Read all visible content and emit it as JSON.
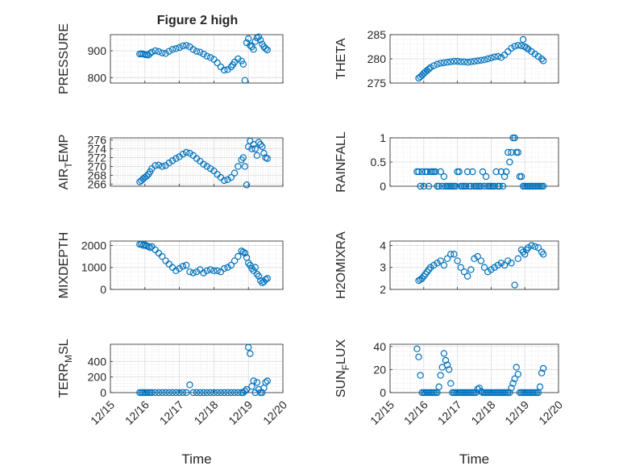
{
  "figure_title": "Figure 2 high",
  "marker_color": "#0072BD",
  "x_tick_labels": [
    "12/15",
    "12/16",
    "12/17",
    "12/18",
    "12/19",
    "12/20"
  ],
  "chart_data": [
    {
      "type": "scatter",
      "ylabel": "PRESSURE",
      "title": "Figure 2 high",
      "ylim": [
        780,
        960
      ],
      "yticks": [
        800,
        900
      ],
      "xlim": [
        15,
        20
      ],
      "grid": true,
      "x": [
        15.85,
        15.9,
        15.95,
        16.0,
        16.05,
        16.1,
        16.15,
        16.2,
        16.3,
        16.4,
        16.5,
        16.6,
        16.7,
        16.8,
        16.9,
        17.0,
        17.1,
        17.2,
        17.3,
        17.4,
        17.5,
        17.6,
        17.7,
        17.8,
        17.9,
        18.0,
        18.1,
        18.2,
        18.3,
        18.4,
        18.5,
        18.55,
        18.6,
        18.7,
        18.8,
        18.85,
        18.9,
        18.95,
        19.0,
        19.05,
        19.1,
        19.15,
        19.2,
        19.25,
        19.3,
        19.35,
        19.4,
        19.45,
        19.5,
        19.55
      ],
      "y": [
        888,
        889,
        888,
        886,
        885,
        884,
        890,
        895,
        900,
        897,
        892,
        890,
        898,
        905,
        908,
        912,
        918,
        920,
        915,
        905,
        898,
        895,
        888,
        880,
        875,
        868,
        855,
        840,
        828,
        830,
        840,
        848,
        858,
        870,
        862,
        850,
        790,
        930,
        945,
        920,
        915,
        905,
        935,
        948,
        952,
        940,
        925,
        915,
        908,
        903
      ]
    },
    {
      "type": "scatter",
      "ylabel": "THETA",
      "ylim": [
        275,
        285
      ],
      "yticks": [
        275,
        280,
        285
      ],
      "xlim": [
        15,
        20
      ],
      "grid": true,
      "x": [
        15.85,
        15.9,
        15.95,
        16.0,
        16.05,
        16.1,
        16.15,
        16.2,
        16.3,
        16.4,
        16.5,
        16.6,
        16.7,
        16.8,
        16.9,
        17.0,
        17.1,
        17.2,
        17.3,
        17.4,
        17.5,
        17.6,
        17.7,
        17.8,
        17.9,
        18.0,
        18.1,
        18.2,
        18.3,
        18.4,
        18.5,
        18.6,
        18.7,
        18.8,
        18.9,
        18.95,
        19.0,
        19.05,
        19.1,
        19.2,
        19.3,
        19.4,
        19.5,
        19.55
      ],
      "y": [
        276,
        276.3,
        276.6,
        277,
        277.3,
        277.6,
        277.9,
        278.2,
        278.6,
        278.9,
        279.1,
        279.2,
        279.3,
        279.4,
        279.5,
        279.5,
        279.4,
        279.4,
        279.3,
        279.4,
        279.5,
        279.6,
        279.7,
        279.8,
        280,
        280.2,
        280.4,
        280.5,
        280.3,
        280.8,
        281.5,
        282.2,
        282.6,
        282.8,
        282.7,
        284,
        282.5,
        282.3,
        282,
        281.5,
        281,
        280.5,
        280,
        279.6
      ]
    },
    {
      "type": "scatter",
      "ylabel": "AIR_TEMP",
      "ylim": [
        265.5,
        276.5
      ],
      "yticks": [
        266,
        268,
        270,
        272,
        274,
        276
      ],
      "xlim": [
        15,
        20
      ],
      "grid": true,
      "x": [
        15.85,
        15.9,
        15.95,
        16.0,
        16.05,
        16.1,
        16.15,
        16.2,
        16.3,
        16.4,
        16.5,
        16.6,
        16.7,
        16.8,
        16.9,
        17.0,
        17.1,
        17.2,
        17.3,
        17.4,
        17.5,
        17.6,
        17.7,
        17.8,
        17.9,
        18.0,
        18.1,
        18.2,
        18.3,
        18.4,
        18.5,
        18.6,
        18.7,
        18.8,
        18.85,
        18.9,
        18.95,
        19.0,
        19.05,
        19.1,
        19.15,
        19.2,
        19.25,
        19.3,
        19.35,
        19.4,
        19.45,
        19.5,
        19.55
      ],
      "y": [
        266.5,
        266.8,
        267.2,
        267.5,
        267.8,
        268.2,
        268.8,
        269.5,
        270.2,
        270.3,
        270,
        270.2,
        270.8,
        271.3,
        271.8,
        272.2,
        272.8,
        273.2,
        273,
        272.5,
        271.8,
        271.2,
        270.5,
        270,
        269.5,
        269,
        268.2,
        267.5,
        266.8,
        267,
        267.5,
        268.5,
        270,
        271.5,
        272,
        270,
        265.8,
        274.5,
        275.8,
        274,
        275,
        274,
        272.5,
        275.5,
        275,
        274.5,
        273,
        272,
        271.8
      ]
    },
    {
      "type": "scatter",
      "ylabel": "RAINFALL",
      "ylim": [
        0,
        1
      ],
      "yticks": [
        0,
        0.5,
        1
      ],
      "xlim": [
        15,
        20
      ],
      "grid": true,
      "x": [
        15.8,
        15.85,
        15.9,
        15.95,
        16.0,
        16.05,
        16.1,
        16.15,
        16.2,
        16.25,
        16.3,
        16.35,
        16.4,
        16.45,
        16.5,
        16.55,
        16.6,
        16.65,
        16.7,
        16.75,
        16.8,
        16.85,
        16.9,
        16.95,
        17.0,
        17.05,
        17.1,
        17.15,
        17.2,
        17.25,
        17.3,
        17.35,
        17.4,
        17.45,
        17.5,
        17.55,
        17.6,
        17.65,
        17.7,
        17.75,
        17.8,
        17.85,
        17.9,
        17.95,
        18.0,
        18.05,
        18.1,
        18.15,
        18.2,
        18.25,
        18.3,
        18.35,
        18.4,
        18.45,
        18.5,
        18.55,
        18.6,
        18.65,
        18.7,
        18.75,
        18.8,
        18.85,
        18.9,
        18.95,
        19.0,
        19.05,
        19.1,
        19.15,
        19.2,
        19.25,
        19.3,
        19.35,
        19.4,
        19.45,
        19.5,
        19.55
      ],
      "y": [
        0.3,
        0.3,
        0,
        0.3,
        0,
        0.3,
        0.3,
        0,
        0.3,
        0.3,
        0.3,
        0.3,
        0,
        0,
        0.3,
        0,
        0.2,
        0,
        0,
        0,
        0,
        0,
        0,
        0,
        0.3,
        0.3,
        0,
        0,
        0,
        0,
        0.3,
        0,
        0,
        0.3,
        0,
        0,
        0,
        0,
        0,
        0.3,
        0,
        0.2,
        0,
        0,
        0,
        0,
        0,
        0.3,
        0,
        0,
        0.3,
        0,
        0.2,
        0.3,
        0.7,
        0.5,
        0.7,
        1,
        1,
        0.7,
        0.7,
        0.2,
        0.2,
        0,
        0,
        0,
        0,
        0,
        0,
        0,
        0,
        0,
        0,
        0,
        0,
        0
      ]
    },
    {
      "type": "scatter",
      "ylabel": "MIXDEPTH",
      "ylim": [
        0,
        2200
      ],
      "yticks": [
        0,
        1000,
        2000
      ],
      "xlim": [
        15,
        20
      ],
      "grid": true,
      "x": [
        15.85,
        15.9,
        15.95,
        16.0,
        16.05,
        16.1,
        16.15,
        16.2,
        16.3,
        16.4,
        16.5,
        16.6,
        16.7,
        16.8,
        16.9,
        17.0,
        17.1,
        17.2,
        17.3,
        17.4,
        17.5,
        17.6,
        17.7,
        17.8,
        17.9,
        18.0,
        18.1,
        18.2,
        18.3,
        18.4,
        18.5,
        18.6,
        18.7,
        18.8,
        18.85,
        18.9,
        18.95,
        19.0,
        19.05,
        19.1,
        19.15,
        19.2,
        19.25,
        19.3,
        19.35,
        19.4,
        19.45,
        19.5,
        19.55
      ],
      "y": [
        2050,
        2050,
        2000,
        2030,
        1980,
        1950,
        1900,
        1950,
        1800,
        1650,
        1500,
        1300,
        1150,
        1000,
        850,
        950,
        1050,
        1100,
        800,
        750,
        800,
        900,
        750,
        850,
        900,
        850,
        850,
        800,
        950,
        1000,
        1100,
        1300,
        1500,
        1750,
        1700,
        1650,
        1450,
        1200,
        1100,
        950,
        850,
        1000,
        700,
        600,
        400,
        300,
        350,
        450,
        500
      ]
    },
    {
      "type": "scatter",
      "ylabel": "H2OMIXRA",
      "ylim": [
        2,
        4.2
      ],
      "yticks": [
        2,
        3,
        4
      ],
      "xlim": [
        15,
        20
      ],
      "grid": true,
      "x": [
        15.85,
        15.9,
        15.95,
        16.0,
        16.05,
        16.1,
        16.15,
        16.2,
        16.3,
        16.4,
        16.5,
        16.6,
        16.7,
        16.8,
        16.9,
        17.0,
        17.1,
        17.2,
        17.3,
        17.4,
        17.5,
        17.6,
        17.7,
        17.8,
        17.9,
        18.0,
        18.1,
        18.2,
        18.3,
        18.4,
        18.5,
        18.6,
        18.7,
        18.8,
        18.9,
        18.95,
        19.0,
        19.05,
        19.1,
        19.2,
        19.3,
        19.4,
        19.5,
        19.55
      ],
      "y": [
        2.4,
        2.45,
        2.5,
        2.6,
        2.7,
        2.8,
        2.9,
        3.0,
        3.1,
        3.2,
        3.3,
        3.1,
        3.4,
        3.6,
        3.6,
        3.3,
        3.0,
        2.8,
        2.6,
        2.9,
        3.4,
        3.5,
        3.3,
        3.0,
        2.8,
        2.9,
        3.0,
        3.1,
        3.2,
        3.1,
        3.3,
        3.2,
        2.2,
        3.4,
        3.8,
        3.7,
        3.6,
        3.8,
        3.9,
        4.0,
        3.95,
        3.9,
        3.7,
        3.6
      ]
    },
    {
      "type": "scatter",
      "ylabel": "TERR_MSL",
      "ylim": [
        0,
        620
      ],
      "yticks": [
        0,
        200,
        400
      ],
      "xlim": [
        15,
        20
      ],
      "grid": true,
      "x": [
        15.85,
        15.9,
        15.95,
        16.0,
        16.05,
        16.1,
        16.15,
        16.2,
        16.3,
        16.4,
        16.5,
        16.6,
        16.7,
        16.8,
        16.9,
        17.0,
        17.1,
        17.2,
        17.3,
        17.4,
        17.5,
        17.6,
        17.7,
        17.8,
        17.9,
        18.0,
        18.1,
        18.2,
        18.3,
        18.4,
        18.5,
        18.6,
        18.7,
        18.8,
        18.85,
        18.9,
        18.95,
        19.0,
        19.05,
        19.1,
        19.15,
        19.2,
        19.25,
        19.3,
        19.35,
        19.4,
        19.45,
        19.5,
        19.55
      ],
      "y": [
        0,
        0,
        0,
        0,
        0,
        0,
        0,
        0,
        0,
        0,
        0,
        0,
        0,
        0,
        0,
        0,
        0,
        0,
        100,
        0,
        0,
        0,
        0,
        0,
        0,
        0,
        0,
        0,
        0,
        0,
        0,
        0,
        0,
        0,
        0,
        20,
        40,
        580,
        500,
        80,
        150,
        0,
        130,
        40,
        0,
        0,
        60,
        130,
        150
      ]
    },
    {
      "type": "scatter",
      "ylabel": "SUN_FLUX",
      "ylim": [
        0,
        42
      ],
      "yticks": [
        0,
        20,
        40
      ],
      "xlim": [
        15,
        20
      ],
      "grid": true,
      "x": [
        15.8,
        15.85,
        15.9,
        15.95,
        16.0,
        16.05,
        16.1,
        16.15,
        16.2,
        16.25,
        16.3,
        16.35,
        16.4,
        16.45,
        16.5,
        16.55,
        16.6,
        16.65,
        16.7,
        16.75,
        16.8,
        16.85,
        16.9,
        16.95,
        17.0,
        17.05,
        17.1,
        17.15,
        17.2,
        17.25,
        17.3,
        17.35,
        17.4,
        17.45,
        17.5,
        17.55,
        17.6,
        17.65,
        17.7,
        17.75,
        17.8,
        17.85,
        17.9,
        17.95,
        18.0,
        18.05,
        18.1,
        18.15,
        18.2,
        18.25,
        18.3,
        18.35,
        18.4,
        18.45,
        18.5,
        18.55,
        18.6,
        18.65,
        18.7,
        18.75,
        18.8,
        18.85,
        18.9,
        18.95,
        19.0,
        19.05,
        19.1,
        19.15,
        19.2,
        19.25,
        19.3,
        19.35,
        19.4,
        19.45,
        19.5,
        19.55
      ],
      "y": [
        38,
        31,
        15,
        0,
        0,
        0,
        0,
        0,
        0,
        0,
        0,
        0,
        0,
        5,
        15,
        22,
        34,
        28,
        24,
        20,
        8,
        0,
        0,
        0,
        0,
        0,
        0,
        0,
        0,
        0,
        0,
        0,
        0,
        0,
        0,
        0,
        3,
        4,
        1,
        0,
        0,
        0,
        0,
        0,
        0,
        0,
        0,
        0,
        0,
        0,
        0,
        0,
        0,
        0,
        0,
        0,
        4,
        8,
        12,
        22,
        16,
        0,
        0,
        0,
        0,
        0,
        0,
        0,
        0,
        0,
        0,
        0,
        0,
        5,
        17,
        21
      ]
    }
  ]
}
